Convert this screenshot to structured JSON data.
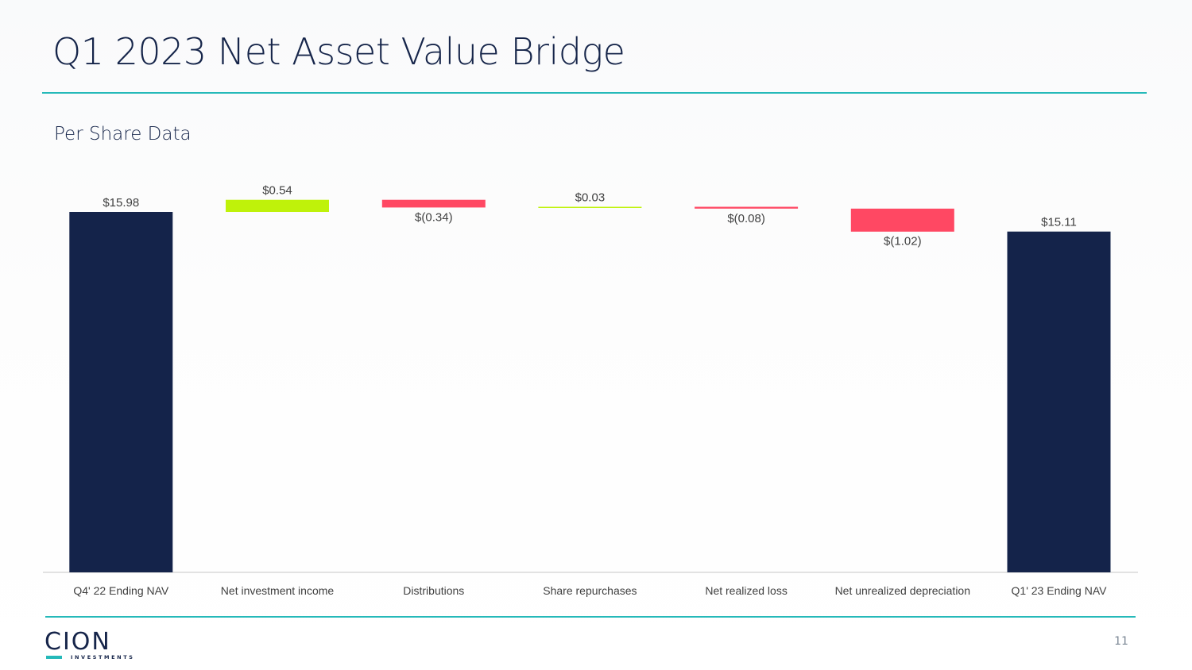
{
  "page": {
    "title": "Q1 2023 Net Asset Value Bridge",
    "subtitle": "Per Share Data",
    "page_number": "11"
  },
  "logo": {
    "wordmark": "CION",
    "tagline": "INVESTMENTS"
  },
  "colors": {
    "navy": "#14234a",
    "increase": "#bff20a",
    "decrease": "#ff4863",
    "accent_rule": "#25b9b9",
    "axis": "#d9d9d9",
    "label_text": "#404040"
  },
  "chart_data": {
    "type": "waterfall",
    "title": "",
    "xlabel": "",
    "ylabel": "",
    "ylim": [
      0,
      17.6
    ],
    "grid": false,
    "legend": "none",
    "categories": [
      "Q4' 22 Ending NAV",
      "Net investment income",
      "Distributions",
      "Share repurchases",
      "Net realized loss",
      "Net unrealized depreciation",
      "Q1' 23 Ending NAV"
    ],
    "steps": [
      {
        "category": "Q4' 22 Ending NAV",
        "kind": "total",
        "value": 15.98,
        "label": "$15.98"
      },
      {
        "category": "Net investment income",
        "kind": "change",
        "value": 0.54,
        "label": "$0.54"
      },
      {
        "category": "Distributions",
        "kind": "change",
        "value": -0.34,
        "label": "$(0.34)"
      },
      {
        "category": "Share repurchases",
        "kind": "change",
        "value": 0.03,
        "label": "$0.03"
      },
      {
        "category": "Net realized loss",
        "kind": "change",
        "value": -0.08,
        "label": "$(0.08)"
      },
      {
        "category": "Net unrealized depreciation",
        "kind": "change",
        "value": -1.02,
        "label": "$(1.02)"
      },
      {
        "category": "Q1' 23 Ending NAV",
        "kind": "total",
        "value": 15.11,
        "label": "$15.11"
      }
    ]
  }
}
